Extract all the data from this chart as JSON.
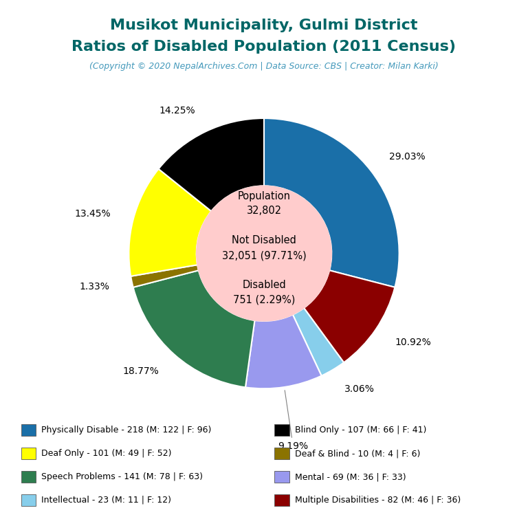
{
  "title_line1": "Musikot Municipality, Gulmi District",
  "title_line2": "Ratios of Disabled Population (2011 Census)",
  "title_color": "#006666",
  "subtitle": "(Copyright © 2020 NepalArchives.Com | Data Source: CBS | Creator: Milan Karki)",
  "subtitle_color": "#4499bb",
  "population": 32802,
  "not_disabled": 32051,
  "not_disabled_pct": 97.71,
  "disabled": 751,
  "disabled_pct": 2.29,
  "center_text_color": "#000000",
  "center_bg_color": "#ffcccc",
  "slices": [
    {
      "label": "Physically Disable - 218 (M: 122 | F: 96)",
      "value": 218,
      "pct": "29.03%",
      "color": "#1a6fa8"
    },
    {
      "label": "Multiple Disabilities - 82 (M: 46 | F: 36)",
      "value": 82,
      "pct": "10.92%",
      "color": "#8b0000"
    },
    {
      "label": "Intellectual - 23 (M: 11 | F: 12)",
      "value": 23,
      "pct": "3.06%",
      "color": "#87ceeb"
    },
    {
      "label": "Mental - 69 (M: 36 | F: 33)",
      "value": 69,
      "pct": "9.19%",
      "color": "#9999ee",
      "annotate": true
    },
    {
      "label": "Speech Problems - 141 (M: 78 | F: 63)",
      "value": 141,
      "pct": "18.77%",
      "color": "#2e7d4f"
    },
    {
      "label": "Deaf & Blind - 10 (M: 4 | F: 6)",
      "value": 10,
      "pct": "1.33%",
      "color": "#8b7300"
    },
    {
      "label": "Deaf Only - 101 (M: 49 | F: 52)",
      "value": 101,
      "pct": "13.45%",
      "color": "#ffff00"
    },
    {
      "label": "Blind Only - 107 (M: 66 | F: 41)",
      "value": 107,
      "pct": "14.25%",
      "color": "#000000"
    }
  ],
  "legend_labels_left": [
    "Physically Disable - 218 (M: 122 | F: 96)",
    "Deaf Only - 101 (M: 49 | F: 52)",
    "Speech Problems - 141 (M: 78 | F: 63)",
    "Intellectual - 23 (M: 11 | F: 12)"
  ],
  "legend_labels_right": [
    "Blind Only - 107 (M: 66 | F: 41)",
    "Deaf & Blind - 10 (M: 4 | F: 6)",
    "Mental - 69 (M: 36 | F: 33)",
    "Multiple Disabilities - 82 (M: 46 | F: 36)"
  ],
  "legend_colors_left": [
    "#1a6fa8",
    "#ffff00",
    "#2e7d4f",
    "#87ceeb"
  ],
  "legend_colors_right": [
    "#000000",
    "#8b7300",
    "#9999ee",
    "#8b0000"
  ],
  "bg_color": "#ffffff"
}
